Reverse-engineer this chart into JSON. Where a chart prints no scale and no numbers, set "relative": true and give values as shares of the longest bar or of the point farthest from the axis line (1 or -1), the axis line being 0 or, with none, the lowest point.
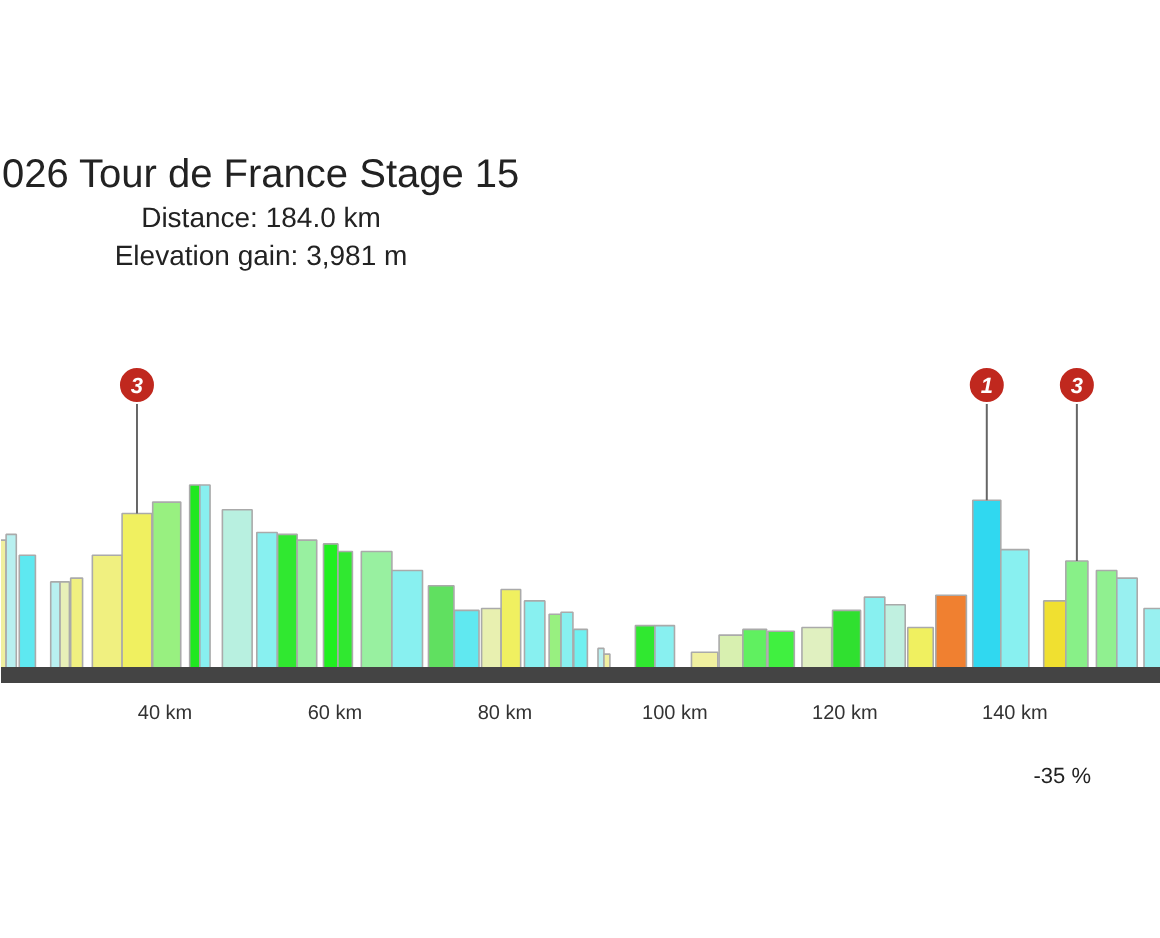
{
  "chart_data": {
    "type": "bar",
    "relative": true,
    "title": "026 Tour de France Stage 15",
    "subtitle": "Distance: 184.0 km\nElevation gain: 3,981 m",
    "x": [
      20.7,
      21.9,
      23.8,
      27.1,
      28.2,
      29.6,
      33.2,
      36.7,
      40.2,
      43.5,
      44.7,
      48.5,
      52.0,
      54.4,
      56.7,
      59.5,
      61.2,
      64.9,
      68.5,
      72.5,
      75.5,
      78.4,
      80.7,
      83.5,
      85.9,
      87.3,
      88.9,
      91.3,
      92.0,
      96.5,
      98.8,
      103.5,
      106.6,
      109.4,
      112.5,
      116.7,
      120.2,
      123.5,
      125.9,
      128.9,
      132.5,
      136.7,
      140.0,
      144.7,
      147.3,
      150.8,
      153.2,
      157.2
    ],
    "values": [
      0.71,
      0.74,
      0.63,
      0.49,
      0.49,
      0.51,
      0.63,
      0.85,
      0.91,
      1,
      1,
      0.87,
      0.75,
      0.74,
      0.71,
      0.69,
      0.65,
      0.65,
      0.55,
      0.47,
      0.34,
      0.35,
      0.45,
      0.39,
      0.32,
      0.33,
      0.24,
      0.14,
      0.11,
      0.26,
      0.26,
      0.12,
      0.21,
      0.24,
      0.23,
      0.25,
      0.34,
      0.41,
      0.37,
      0.25,
      0.42,
      0.92,
      0.66,
      0.39,
      0.6,
      0.55,
      0.51,
      0.35
    ],
    "colors": [
      "#f0f0a0",
      "#b8f0f0",
      "#5ee8f0",
      "#b8f0f0",
      "#e8f0b8",
      "#f0f080",
      "#f0f080",
      "#f0f060",
      "#98f080",
      "#20e820",
      "#88f0f0",
      "#b8f0e0",
      "#88f0f0",
      "#30e830",
      "#98f0a0",
      "#20f020",
      "#30e830",
      "#98f0a0",
      "#88f0f0",
      "#60e060",
      "#60e8f0",
      "#e8f0b0",
      "#f0f060",
      "#88f0f0",
      "#98f080",
      "#88f0f0",
      "#70f0f0",
      "#b8f0f0",
      "#f0f0a0",
      "#30e830",
      "#88f0f0",
      "#f0f0a0",
      "#d8f0b0",
      "#60f060",
      "#40f040",
      "#e0f0c0",
      "#30e030",
      "#88f0f0",
      "#c0f0e0",
      "#f0f060",
      "#f08030",
      "#30d8f0",
      "#88f0f0",
      "#f0e030",
      "#88f088",
      "#90f090",
      "#98f0f0",
      "#98f0f0"
    ],
    "xlim": [
      20.7,
      157.2
    ],
    "xticks": [
      {
        "value": 40,
        "label": "40 km"
      },
      {
        "value": 60,
        "label": "60 km"
      },
      {
        "value": 80,
        "label": "80 km"
      },
      {
        "value": 100,
        "label": "100 km"
      },
      {
        "value": 120,
        "label": "120 km"
      },
      {
        "value": 140,
        "label": "140 km"
      }
    ],
    "grid": false,
    "annotations": [
      {
        "text": "3",
        "x": 36.7,
        "y": 0.85
      },
      {
        "text": "1",
        "x": 136.7,
        "y": 0.92
      },
      {
        "text": "3",
        "x": 147.3,
        "y": 0.6
      },
      "-35 %"
    ]
  }
}
